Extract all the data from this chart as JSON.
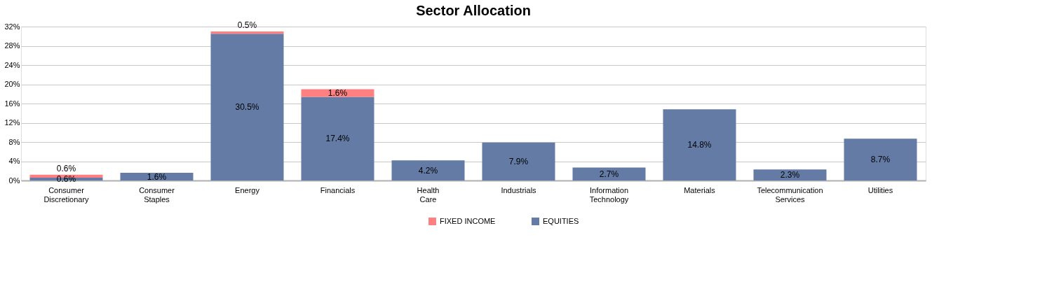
{
  "chart_data": {
    "type": "bar",
    "title": "Sector Allocation",
    "stacked": true,
    "categories": [
      "Consumer Discretionary",
      "Consumer Staples",
      "Energy",
      "Financials",
      "Health Care",
      "Industrials",
      "Information Technology",
      "Materials",
      "Telecommunication Services",
      "Utilities"
    ],
    "series": [
      {
        "name": "EQUITIES",
        "color": "#637ba5",
        "values": [
          0.6,
          1.6,
          30.5,
          17.4,
          4.2,
          7.9,
          2.7,
          14.8,
          2.3,
          8.7
        ],
        "value_labels": [
          "0.6%",
          "1.6%",
          "30.5%",
          "17.4%",
          "4.2%",
          "7.9%",
          "2.7%",
          "14.8%",
          "2.3%",
          "8.7%"
        ]
      },
      {
        "name": "FIXED INCOME",
        "color": "#ff8080",
        "values": [
          0.6,
          null,
          0.5,
          1.6,
          null,
          null,
          null,
          null,
          null,
          null
        ],
        "value_labels": [
          "0.6%",
          null,
          "0.5%",
          "1.6%",
          null,
          null,
          null,
          null,
          null,
          null
        ]
      }
    ],
    "ylim": [
      0,
      32
    ],
    "yticks": [
      {
        "value": 0,
        "label": "0%"
      },
      {
        "value": 4,
        "label": "4%"
      },
      {
        "value": 8,
        "label": "8%"
      },
      {
        "value": 12,
        "label": "12%"
      },
      {
        "value": 16,
        "label": "16%"
      },
      {
        "value": 20,
        "label": "20%"
      },
      {
        "value": 24,
        "label": "24%"
      },
      {
        "value": 28,
        "label": "28%"
      },
      {
        "value": 32,
        "label": "32%"
      }
    ],
    "grid": "y",
    "legend": "bottom"
  }
}
